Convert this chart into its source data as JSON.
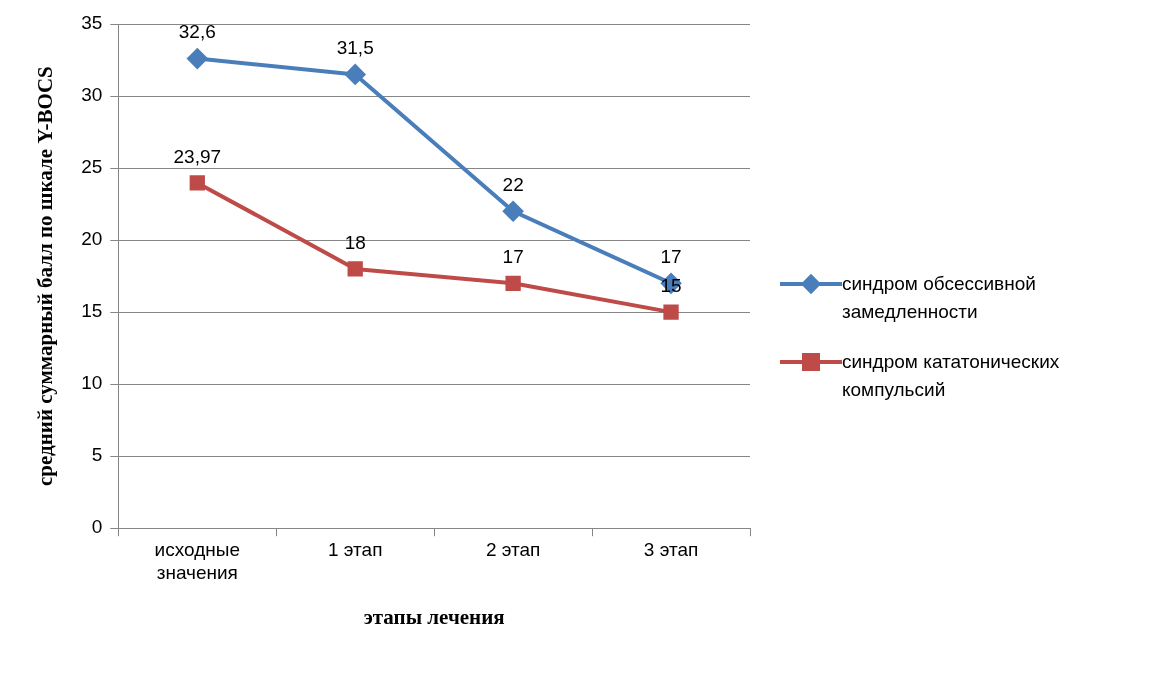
{
  "chart_data": {
    "type": "line",
    "xlabel": "этапы лечения",
    "ylabel": "средний суммарный балл по шкале Y-BOCS",
    "categories": [
      "исходные значения",
      "1 этап",
      "2 этап",
      "3 этап"
    ],
    "series": [
      {
        "name": "синдром обсессивной замедленности",
        "color": "#4a7ebb",
        "marker": "diamond",
        "values": [
          32.6,
          31.5,
          22,
          17
        ],
        "value_labels": [
          "32,6",
          "31,5",
          "22",
          "17"
        ]
      },
      {
        "name": "синдром кататонических компульсий",
        "color": "#be4b48",
        "marker": "square",
        "values": [
          23.97,
          18,
          17,
          15
        ],
        "value_labels": [
          "23,97",
          "18",
          "17",
          "15"
        ]
      }
    ],
    "ylim": [
      0,
      35
    ],
    "yticks": [
      0,
      5,
      10,
      15,
      20,
      25,
      30,
      35
    ],
    "grid": "y",
    "legend": "right"
  }
}
